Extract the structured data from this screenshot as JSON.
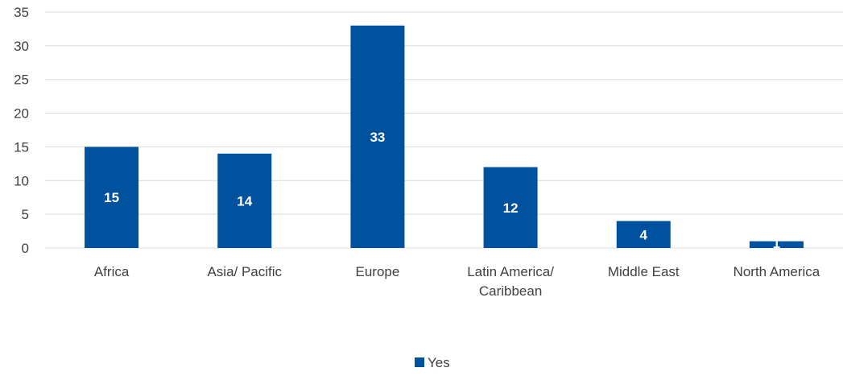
{
  "chart_data": {
    "type": "bar",
    "categories": [
      [
        "Africa"
      ],
      [
        "Asia/ Pacific"
      ],
      [
        "Europe"
      ],
      [
        "Latin America/",
        "Caribbean"
      ],
      [
        "Middle East"
      ],
      [
        "North America"
      ]
    ],
    "series": [
      {
        "name": "Yes",
        "values": [
          15,
          14,
          33,
          12,
          4,
          1
        ]
      }
    ],
    "data_labels": [
      "15",
      "14",
      "33",
      "12",
      "4",
      "1"
    ],
    "y_ticks": [
      0,
      5,
      10,
      15,
      20,
      25,
      30,
      35
    ],
    "ylim": [
      0,
      35
    ],
    "grid": true,
    "legend_position": "bottom",
    "colors": {
      "bar": "#00529F",
      "grid": "#D9D9D9",
      "text": "#404040",
      "label": "#FFFFFF"
    }
  }
}
